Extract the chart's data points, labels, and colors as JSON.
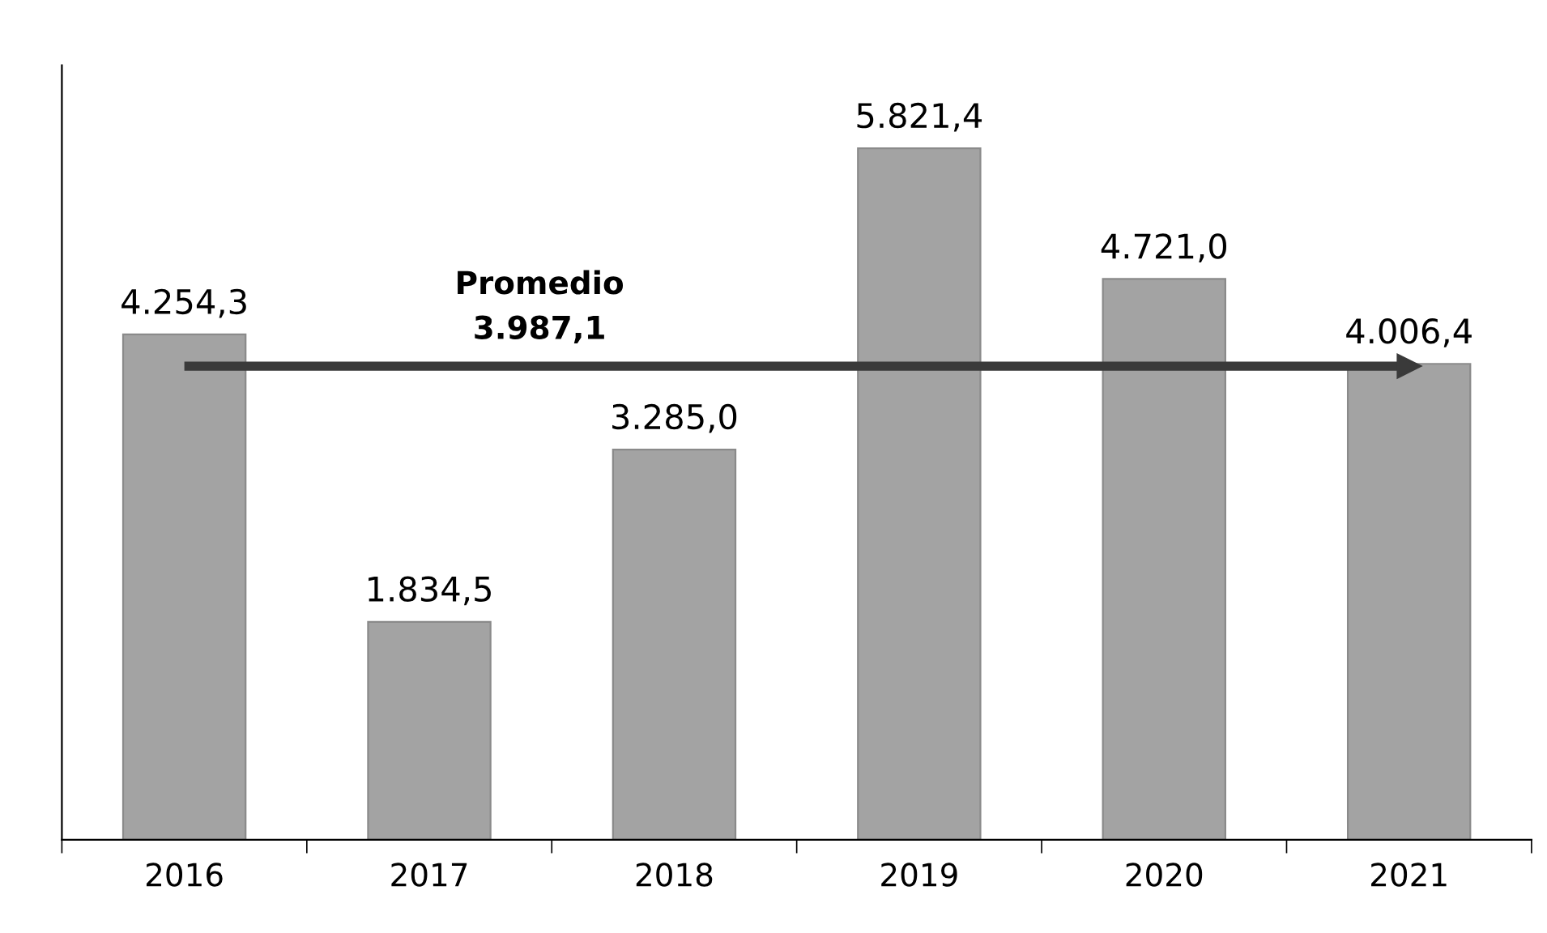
{
  "chart_data": {
    "type": "bar",
    "categories": [
      "2016",
      "2017",
      "2018",
      "2019",
      "2020",
      "2021"
    ],
    "values": [
      4254.3,
      1834.5,
      3285.0,
      5821.4,
      4721.0,
      4006.4
    ],
    "value_labels": [
      "4.254,3",
      "1.834,5",
      "3.285,0",
      "5.821,4",
      "4.721,0",
      "4.006,4"
    ],
    "color": "#a3a3a3",
    "ref_lines": [
      {
        "axis": "y",
        "value": 3987.1,
        "label": "Promedio\n3.987,1",
        "color": "#3a3a3a"
      }
    ],
    "grid": false,
    "legend": false
  }
}
